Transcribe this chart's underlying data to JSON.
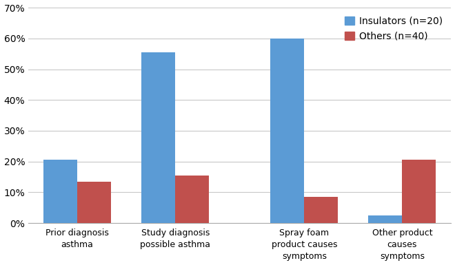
{
  "categories": [
    "Prior diagnosis\nasthma",
    "Study diagnosis\npossible asthma",
    "Spray foam\nproduct causes\nsymptoms",
    "Other product\ncauses\nsymptoms"
  ],
  "insulators_values": [
    20.5,
    55.5,
    60.0,
    2.5
  ],
  "others_values": [
    13.5,
    15.5,
    8.5,
    20.5
  ],
  "insulators_color": "#5b9bd5",
  "others_color": "#c0504d",
  "legend_labels": [
    "Insulators (n=20)",
    "Others (n=40)"
  ],
  "ylim": [
    0,
    70
  ],
  "yticks": [
    0,
    10,
    20,
    30,
    40,
    50,
    60,
    70
  ],
  "ytick_labels": [
    "0%",
    "10%",
    "20%",
    "30%",
    "40%",
    "50%",
    "60%",
    "70%"
  ],
  "bar_width": 0.38,
  "background_color": "#ffffff",
  "grid_color": "#c8c8c8",
  "tick_fontsize": 10,
  "legend_fontsize": 10,
  "xlabel_fontsize": 9,
  "group_positions": [
    0.0,
    1.1,
    2.55,
    3.65
  ]
}
